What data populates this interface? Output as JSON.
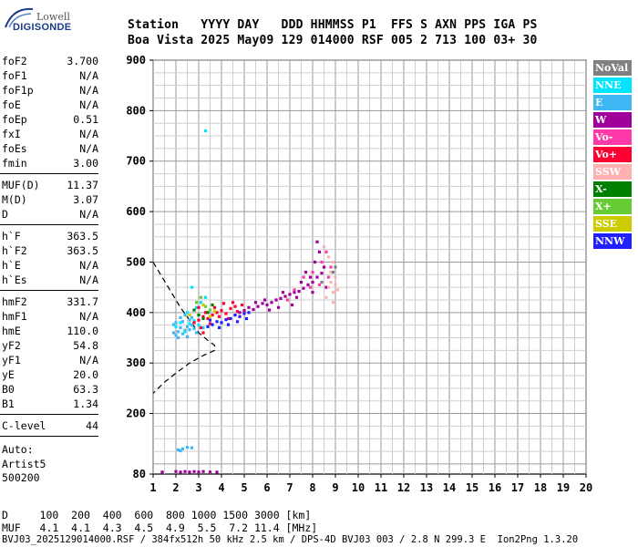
{
  "logo": {
    "top": "Lowell",
    "bottom": "DIGISONDE"
  },
  "header": {
    "line1": "Station   YYYY DAY   DDD HHMMSS P1  FFS S AXN PPS IGA PS",
    "line2": "Boa Vista 2025 May09 129 014000 RSF 005 2 713 100 03+ 30"
  },
  "params": [
    {
      "k": "foF2",
      "v": "3.700"
    },
    {
      "k": "foF1",
      "v": "N/A"
    },
    {
      "k": "foF1p",
      "v": "N/A"
    },
    {
      "k": "foE",
      "v": "N/A"
    },
    {
      "k": "foEp",
      "v": "0.51"
    },
    {
      "k": "fxI",
      "v": "N/A"
    },
    {
      "k": "foEs",
      "v": "N/A"
    },
    {
      "k": "fmin",
      "v": "3.00"
    },
    {
      "k": "MUF(D)",
      "v": "11.37"
    },
    {
      "k": "M(D)",
      "v": "3.07"
    },
    {
      "k": "D",
      "v": "N/A"
    },
    {
      "k": "h`F",
      "v": "363.5"
    },
    {
      "k": "h`F2",
      "v": "363.5"
    },
    {
      "k": "h`E",
      "v": "N/A"
    },
    {
      "k": "h`Es",
      "v": "N/A"
    },
    {
      "k": "hmF2",
      "v": "331.7"
    },
    {
      "k": "hmF1",
      "v": "N/A"
    },
    {
      "k": "hmE",
      "v": "110.0"
    },
    {
      "k": "yF2",
      "v": "54.8"
    },
    {
      "k": "yF1",
      "v": "N/A"
    },
    {
      "k": "yE",
      "v": "20.0"
    },
    {
      "k": "B0",
      "v": "63.3"
    },
    {
      "k": "B1",
      "v": "1.34"
    },
    {
      "k": "C-level",
      "v": "44"
    }
  ],
  "auto": {
    "line1": "Auto:",
    "line2": "Artist5",
    "line3": "500200"
  },
  "footer": {
    "line1": "D     100  200  400  600  800 1000 1500 3000 [km]",
    "line2": "MUF   4.1  4.1  4.3  4.5  4.9  5.5  7.2 11.4 [MHz]",
    "line3": "BVJ03_2025129014000.RSF / 384fx512h 50 kHz 2.5 km / DPS-4D BVJ03 003 / 2.8 N 299.3 E  Ion2Png 1.3.20"
  },
  "legend": [
    {
      "label": "NoVal",
      "color": "#808080"
    },
    {
      "label": "NNE",
      "color": "#00e5ff"
    },
    {
      "label": "E",
      "color": "#3db8f5"
    },
    {
      "label": "W",
      "color": "#a0009a"
    },
    {
      "label": "Vo-",
      "color": "#ff3aa8"
    },
    {
      "label": "Vo+",
      "color": "#ff0033"
    },
    {
      "label": "SSW",
      "color": "#ffb0b0"
    },
    {
      "label": "X-",
      "color": "#008000"
    },
    {
      "label": "X+",
      "color": "#66cc33"
    },
    {
      "label": "SSE",
      "color": "#cccc00"
    },
    {
      "label": "NNW",
      "color": "#2020ff"
    }
  ],
  "chart_data": {
    "type": "scatter",
    "title": "",
    "xlabel": "",
    "ylabel": "",
    "xlim": [
      1,
      20
    ],
    "ylim": [
      80,
      900
    ],
    "x_ticks": [
      "1",
      "2",
      "3",
      "4",
      "5",
      "6",
      "7",
      "8",
      "9",
      "10",
      "11",
      "12",
      "13",
      "14",
      "15",
      "16",
      "17",
      "18",
      "19",
      "20"
    ],
    "y_ticks": [
      "80",
      "200",
      "300",
      "400",
      "500",
      "600",
      "700",
      "800",
      "900"
    ],
    "grid": true,
    "legend_position": "right",
    "profile_curve": [
      [
        1.0,
        500
      ],
      [
        1.4,
        470
      ],
      [
        1.8,
        440
      ],
      [
        2.2,
        410
      ],
      [
        2.6,
        385
      ],
      [
        3.0,
        360
      ],
      [
        3.4,
        345
      ],
      [
        3.7,
        335
      ],
      [
        3.7,
        325
      ],
      [
        3.2,
        315
      ],
      [
        2.6,
        300
      ],
      [
        2.0,
        280
      ],
      [
        1.5,
        262
      ],
      [
        1.0,
        240
      ]
    ],
    "series": [
      {
        "name": "E",
        "points": [
          [
            1.9,
            360
          ],
          [
            2.0,
            355
          ],
          [
            2.1,
            362
          ],
          [
            2.2,
            370
          ],
          [
            2.3,
            358
          ],
          [
            2.4,
            365
          ],
          [
            2.5,
            372
          ],
          [
            2.6,
            366
          ],
          [
            2.7,
            375
          ],
          [
            2.8,
            368
          ],
          [
            2.0,
            380
          ],
          [
            2.2,
            390
          ],
          [
            2.4,
            395
          ],
          [
            2.6,
            385
          ],
          [
            1.9,
            376
          ],
          [
            2.1,
            350
          ],
          [
            2.3,
            382
          ],
          [
            2.5,
            352
          ],
          [
            2.7,
            390
          ],
          [
            2.9,
            360
          ],
          [
            2.1,
            128
          ],
          [
            2.3,
            130
          ],
          [
            2.5,
            133
          ],
          [
            2.7,
            132
          ],
          [
            2.2,
            126
          ]
        ]
      },
      {
        "name": "NNE",
        "points": [
          [
            2.0,
            372
          ],
          [
            2.2,
            380
          ],
          [
            2.4,
            362
          ],
          [
            2.6,
            378
          ],
          [
            2.8,
            384
          ],
          [
            3.0,
            375
          ],
          [
            3.2,
            370
          ],
          [
            2.9,
            410
          ],
          [
            3.1,
            420
          ],
          [
            3.3,
            430
          ],
          [
            2.5,
            400
          ],
          [
            2.7,
            450
          ],
          [
            3.3,
            760
          ]
        ]
      },
      {
        "name": "Vo+",
        "points": [
          [
            2.8,
            380
          ],
          [
            3.0,
            385
          ],
          [
            3.2,
            392
          ],
          [
            3.4,
            388
          ],
          [
            3.6,
            395
          ],
          [
            3.8,
            400
          ],
          [
            4.0,
            404
          ],
          [
            4.2,
            398
          ],
          [
            4.4,
            408
          ],
          [
            4.6,
            412
          ],
          [
            3.1,
            370
          ],
          [
            3.3,
            400
          ],
          [
            3.5,
            378
          ],
          [
            3.7,
            410
          ],
          [
            3.9,
            392
          ],
          [
            4.1,
            418
          ],
          [
            4.3,
            388
          ],
          [
            4.5,
            420
          ],
          [
            4.7,
            402
          ],
          [
            4.9,
            415
          ],
          [
            3.0,
            410
          ],
          [
            3.2,
            360
          ]
        ]
      },
      {
        "name": "NNW",
        "points": [
          [
            3.4,
            372
          ],
          [
            3.6,
            376
          ],
          [
            3.8,
            382
          ],
          [
            4.0,
            380
          ],
          [
            4.2,
            386
          ],
          [
            4.4,
            388
          ],
          [
            4.6,
            395
          ],
          [
            4.8,
            392
          ],
          [
            5.0,
            398
          ],
          [
            5.2,
            400
          ],
          [
            3.5,
            385
          ],
          [
            3.9,
            370
          ],
          [
            4.3,
            376
          ],
          [
            4.7,
            382
          ],
          [
            5.1,
            388
          ]
        ]
      },
      {
        "name": "W",
        "points": [
          [
            4.8,
            400
          ],
          [
            5.0,
            404
          ],
          [
            5.2,
            410
          ],
          [
            5.4,
            406
          ],
          [
            5.6,
            412
          ],
          [
            5.8,
            418
          ],
          [
            6.0,
            415
          ],
          [
            6.2,
            420
          ],
          [
            6.4,
            425
          ],
          [
            6.6,
            428
          ],
          [
            6.8,
            432
          ],
          [
            7.0,
            436
          ],
          [
            7.2,
            440
          ],
          [
            7.4,
            442
          ],
          [
            7.6,
            448
          ],
          [
            7.8,
            455
          ],
          [
            8.0,
            460
          ],
          [
            8.2,
            470
          ],
          [
            8.4,
            478
          ],
          [
            5.5,
            420
          ],
          [
            6.1,
            405
          ],
          [
            6.7,
            440
          ],
          [
            7.3,
            430
          ],
          [
            7.9,
            470
          ],
          [
            8.1,
            500
          ],
          [
            8.3,
            520
          ],
          [
            8.0,
            440
          ],
          [
            7.5,
            460
          ],
          [
            7.1,
            415
          ],
          [
            6.5,
            410
          ],
          [
            5.9,
            425
          ],
          [
            8.5,
            490
          ],
          [
            8.6,
            450
          ],
          [
            8.2,
            540
          ],
          [
            7.7,
            480
          ]
        ]
      },
      {
        "name": "Vo-",
        "points": [
          [
            7.2,
            445
          ],
          [
            7.6,
            470
          ],
          [
            8.0,
            480
          ],
          [
            8.4,
            500
          ],
          [
            8.6,
            520
          ],
          [
            8.7,
            470
          ],
          [
            8.8,
            490
          ],
          [
            8.3,
            455
          ],
          [
            7.9,
            450
          ],
          [
            6.9,
            425
          ]
        ]
      },
      {
        "name": "SSW",
        "points": [
          [
            8.6,
            430
          ],
          [
            8.7,
            450
          ],
          [
            8.8,
            460
          ],
          [
            8.9,
            440
          ],
          [
            9.0,
            455
          ],
          [
            8.8,
            480
          ],
          [
            8.9,
            500
          ],
          [
            9.0,
            470
          ],
          [
            8.7,
            510
          ],
          [
            8.5,
            530
          ],
          [
            8.9,
            420
          ],
          [
            9.1,
            445
          ]
        ]
      },
      {
        "name": "X-",
        "points": [
          [
            3.0,
            395
          ],
          [
            3.4,
            400
          ],
          [
            3.6,
            415
          ],
          [
            3.2,
            388
          ],
          [
            2.8,
            405
          ]
        ]
      },
      {
        "name": "X+",
        "points": [
          [
            2.9,
            420
          ],
          [
            3.3,
            412
          ],
          [
            3.5,
            405
          ],
          [
            3.1,
            430
          ]
        ]
      },
      {
        "name": "SSE",
        "points": [
          [
            2.6,
            395
          ],
          [
            3.2,
            415
          ],
          [
            3.5,
            392
          ],
          [
            3.7,
            403
          ]
        ]
      },
      {
        "name": "NoVal",
        "points": [
          [
            8.9,
            480
          ],
          [
            9.0,
            490
          ],
          [
            8.4,
            460
          ]
        ]
      },
      {
        "name": "W",
        "points": [
          [
            1.4,
            84
          ],
          [
            2.0,
            85
          ],
          [
            2.2,
            84
          ],
          [
            2.4,
            85
          ],
          [
            2.6,
            84
          ],
          [
            2.8,
            85
          ],
          [
            3.0,
            84
          ],
          [
            3.2,
            85
          ],
          [
            3.5,
            84
          ],
          [
            3.8,
            84
          ]
        ]
      }
    ]
  }
}
